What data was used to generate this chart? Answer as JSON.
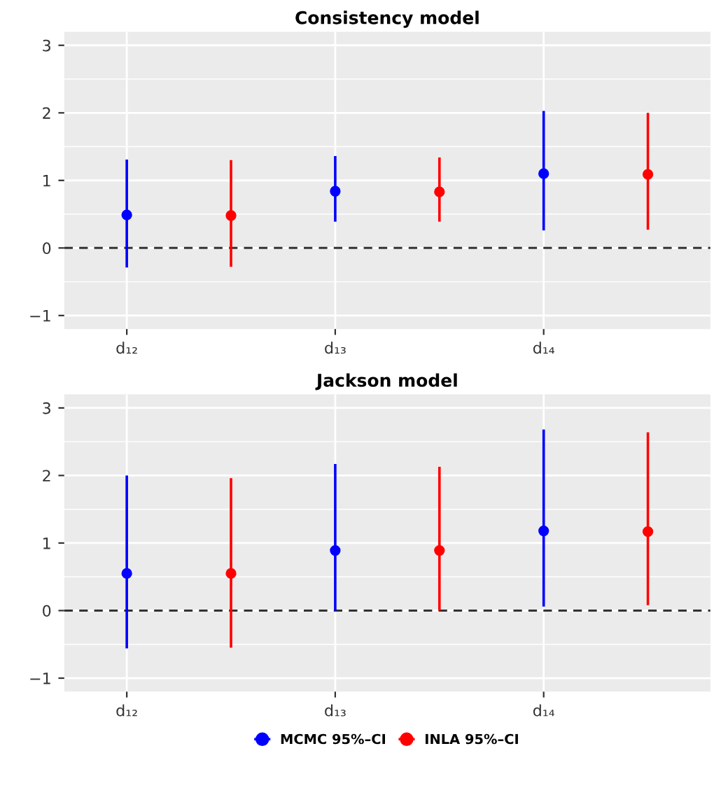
{
  "chart_data": [
    {
      "type": "scatter",
      "title": "Consistency model",
      "categories": [
        "d₁₂",
        null,
        "d₁₃",
        null,
        "d₁₄",
        null
      ],
      "marker": "circle",
      "grid": true,
      "ylim": [
        -1.2,
        3.2
      ],
      "yticks": [
        -1,
        0,
        1,
        2,
        3
      ],
      "ref_lines": [
        {
          "axis": "y",
          "value": 0,
          "label": null,
          "color": "#333333",
          "line_style": "dashed"
        }
      ],
      "series": [
        {
          "color": "#0000ff",
          "values": [
            0.49,
            null,
            0.84,
            null,
            1.1,
            null
          ],
          "errors": [
            [
              -0.29,
              1.31
            ],
            null,
            [
              0.39,
              1.36
            ],
            null,
            [
              0.26,
              2.03
            ],
            null
          ]
        },
        {
          "color": "#ff0000",
          "values": [
            null,
            0.48,
            null,
            0.83,
            null,
            1.09
          ],
          "errors": [
            null,
            [
              -0.28,
              1.3
            ],
            null,
            [
              0.39,
              1.34
            ],
            null,
            [
              0.27,
              2.0
            ]
          ]
        }
      ]
    },
    {
      "type": "scatter",
      "title": "Jackson model",
      "categories": [
        "d₁₂",
        null,
        "d₁₃",
        null,
        "d₁₄",
        null
      ],
      "marker": "circle",
      "grid": true,
      "legend": "bottom",
      "ylim": [
        -1.2,
        3.2
      ],
      "yticks": [
        -1,
        0,
        1,
        2,
        3
      ],
      "ref_lines": [
        {
          "axis": "y",
          "value": 0,
          "label": null,
          "color": "#333333",
          "line_style": "dashed"
        }
      ],
      "series": [
        {
          "name": "MCMC 95%–CI",
          "color": "#0000ff",
          "values": [
            0.55,
            null,
            0.89,
            null,
            1.18,
            null
          ],
          "errors": [
            [
              -0.56,
              2.0
            ],
            null,
            [
              0.0,
              2.17
            ],
            null,
            [
              0.06,
              2.68
            ],
            null
          ]
        },
        {
          "name": "INLA 95%–CI",
          "color": "#ff0000",
          "values": [
            null,
            0.55,
            null,
            0.89,
            null,
            1.17
          ],
          "errors": [
            null,
            [
              -0.55,
              1.96
            ],
            null,
            [
              0.0,
              2.13
            ],
            null,
            [
              0.08,
              2.64
            ]
          ]
        }
      ]
    }
  ]
}
